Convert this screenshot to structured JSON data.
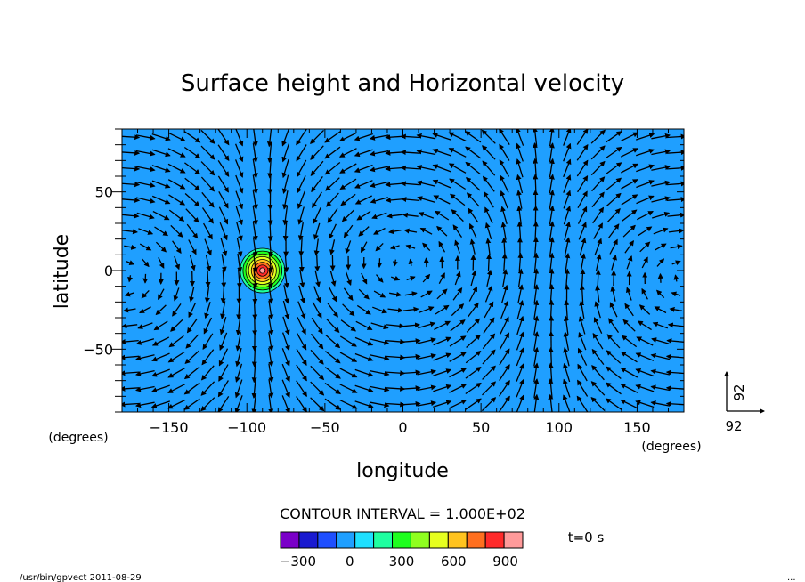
{
  "chart_data": {
    "type": "vector-field-contour",
    "title": "Surface height and Horizontal velocity",
    "xlabel": "longitude",
    "ylabel": "latitude",
    "x_unit_label": "(degrees)",
    "y_unit_label": "(degrees)",
    "xlim": [
      -180,
      180
    ],
    "ylim": [
      -90,
      90
    ],
    "xticks": [
      -150,
      -100,
      -50,
      0,
      50,
      100,
      150
    ],
    "yticks": [
      50,
      0,
      -50
    ],
    "contour_interval_label": "CONTOUR INTERVAL = 1.000E+02",
    "colorbar": {
      "ticks": [
        -300,
        0,
        300,
        600,
        900
      ],
      "colors": [
        "#7a00c8",
        "#1a1ad0",
        "#1f4fff",
        "#1f9fff",
        "#1fe0ff",
        "#1fffa0",
        "#1fff1f",
        "#8fff1f",
        "#e6ff1f",
        "#ffc31f",
        "#ff6f1f",
        "#ff2a2a",
        "#ff9a9a"
      ]
    },
    "time_label": "t=0 s",
    "reference_vector": {
      "x_label": "92",
      "y_label": "92"
    },
    "background_level_color": "#1f9fff",
    "bump": {
      "center_lon": -90,
      "center_lat": 0,
      "ring_colors": [
        "#1fffa0",
        "#1fff1f",
        "#8fff1f",
        "#e6ff1f",
        "#ffc31f",
        "#ff6f1f",
        "#ff2a2a",
        "#ff9a9a"
      ]
    },
    "vector_grid": {
      "lon_start": -175,
      "lon_step": 10,
      "lon_count": 36,
      "lat_start": 85,
      "lat_step": -10,
      "lat_count": 18
    }
  },
  "footer": {
    "program_info": "/usr/bin/gpvect  2011-08-29",
    "corner_mark": "..."
  }
}
